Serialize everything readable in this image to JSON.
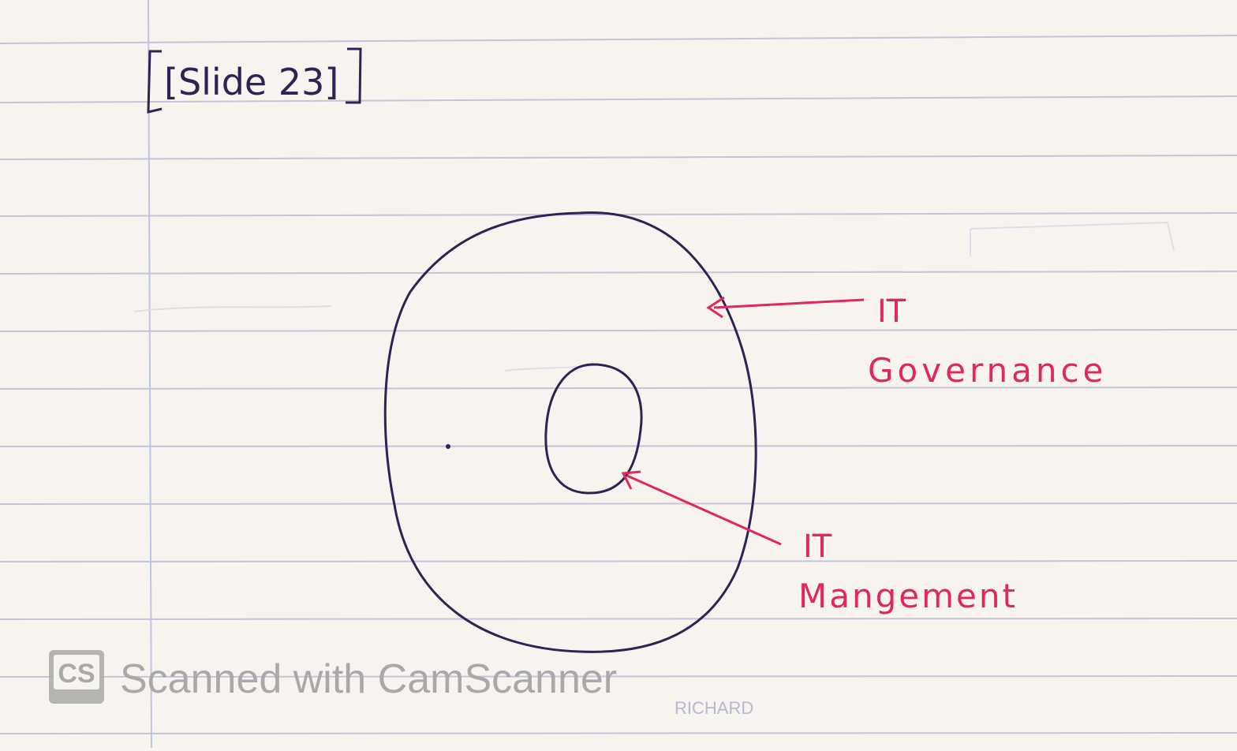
{
  "page": {
    "heading": "[Slide 23]",
    "colors": {
      "paper": "#f7f4ef",
      "rule_line": "#c9c2dc",
      "margin_line": "#bfc3e6",
      "ink": "#2d2456",
      "annotation": "#e0295a",
      "watermark": "#a9a9a9"
    }
  },
  "diagram": {
    "outer_label_line1": "IT",
    "outer_label_line2": "Governance",
    "inner_label_line1": "IT",
    "inner_label_line2": "Mangement"
  },
  "watermark": {
    "logo_text": "CS",
    "text": "Scanned with CamScanner"
  },
  "footer": {
    "brand": "RICHARD"
  }
}
